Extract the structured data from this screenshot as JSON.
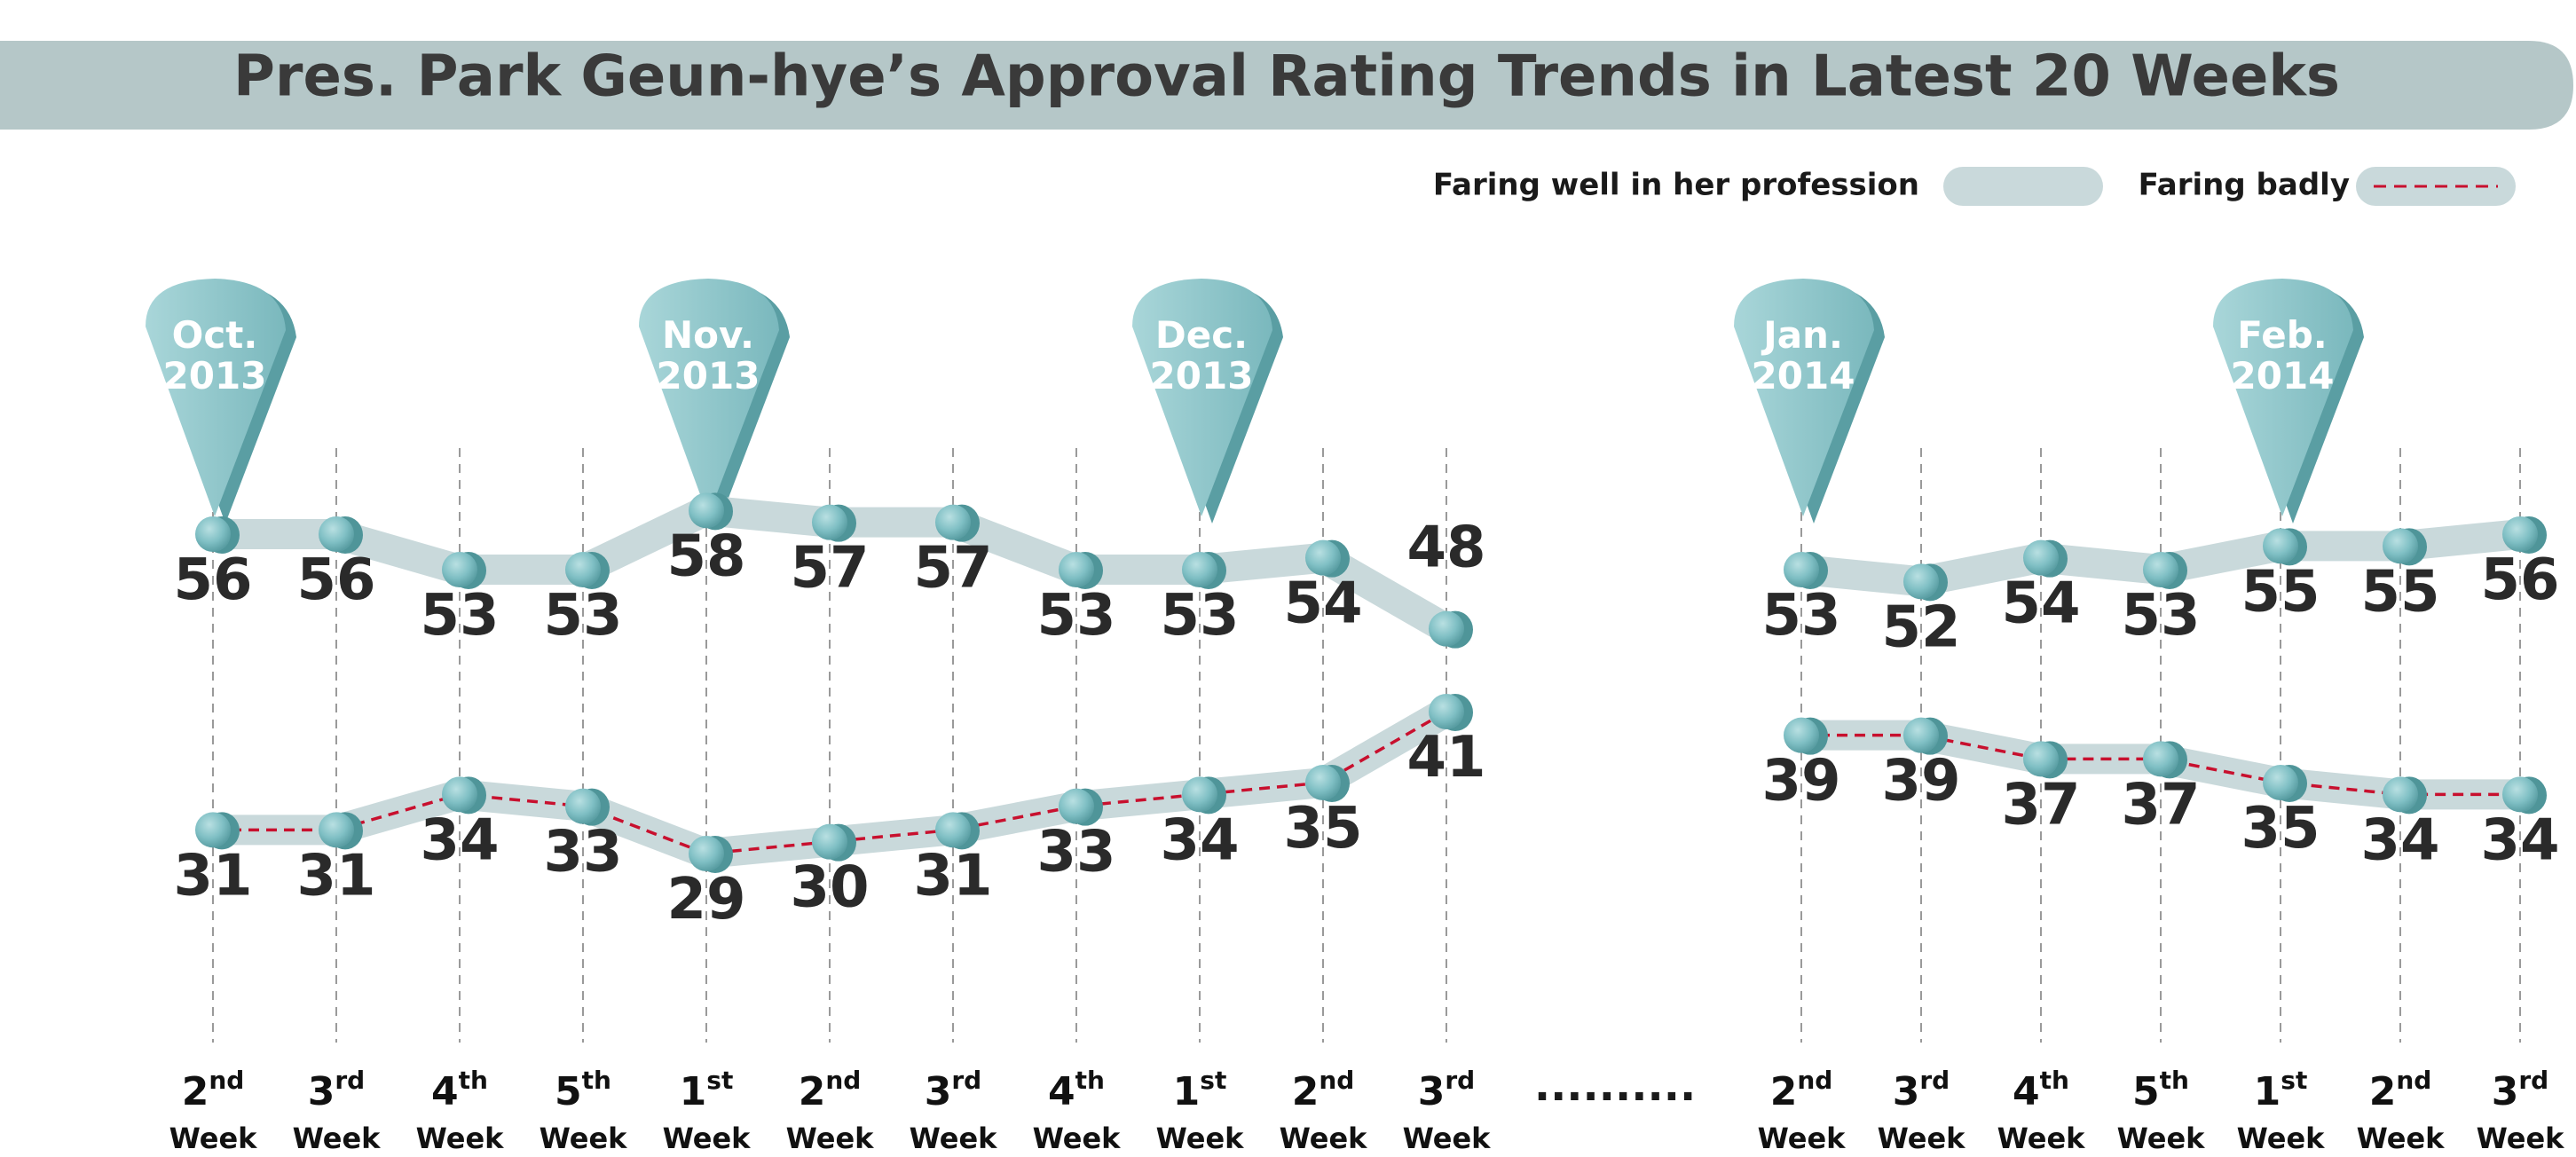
{
  "chart_data": {
    "type": "line",
    "title": "Pres. Park Geun-hye’s Approval Rating Trends in Latest 20 Weeks",
    "legend": {
      "position": "top-right",
      "entries": [
        "Faring well in her profession",
        "Faring badly"
      ]
    },
    "gap_marker": "..........",
    "months": [
      {
        "label_line1": "Oct.",
        "label_line2": "2013",
        "at_index": 0
      },
      {
        "label_line1": "Nov.",
        "label_line2": "2013",
        "at_index": 4
      },
      {
        "label_line1": "Dec.",
        "label_line2": "2013",
        "at_index": 8
      },
      {
        "label_line1": "Jan.",
        "label_line2": "2014",
        "at_index": 11
      },
      {
        "label_line1": "Feb.",
        "label_line2": "2014",
        "at_index": 15
      }
    ],
    "categories": [
      {
        "num": "2",
        "suffix": "nd",
        "unit": "Week"
      },
      {
        "num": "3",
        "suffix": "rd",
        "unit": "Week"
      },
      {
        "num": "4",
        "suffix": "th",
        "unit": "Week"
      },
      {
        "num": "5",
        "suffix": "th",
        "unit": "Week"
      },
      {
        "num": "1",
        "suffix": "st",
        "unit": "Week"
      },
      {
        "num": "2",
        "suffix": "nd",
        "unit": "Week"
      },
      {
        "num": "3",
        "suffix": "rd",
        "unit": "Week"
      },
      {
        "num": "4",
        "suffix": "th",
        "unit": "Week"
      },
      {
        "num": "1",
        "suffix": "st",
        "unit": "Week"
      },
      {
        "num": "2",
        "suffix": "nd",
        "unit": "Week"
      },
      {
        "num": "3",
        "suffix": "rd",
        "unit": "Week"
      },
      {
        "num": "2",
        "suffix": "nd",
        "unit": "Week"
      },
      {
        "num": "3",
        "suffix": "rd",
        "unit": "Week"
      },
      {
        "num": "4",
        "suffix": "th",
        "unit": "Week"
      },
      {
        "num": "5",
        "suffix": "th",
        "unit": "Week"
      },
      {
        "num": "1",
        "suffix": "st",
        "unit": "Week"
      },
      {
        "num": "2",
        "suffix": "nd",
        "unit": "Week"
      },
      {
        "num": "3",
        "suffix": "rd",
        "unit": "Week"
      }
    ],
    "segments": [
      {
        "start": 0,
        "end": 10
      },
      {
        "start": 11,
        "end": 17
      }
    ],
    "series": [
      {
        "name": "Faring well in her profession",
        "style": "thick-band",
        "color": "#c9d9db",
        "values": [
          56,
          56,
          53,
          53,
          58,
          57,
          57,
          53,
          53,
          54,
          48,
          53,
          52,
          54,
          53,
          55,
          55,
          56
        ]
      },
      {
        "name": "Faring badly",
        "style": "dashed-on-band",
        "color": "#c8102e",
        "values": [
          31,
          31,
          34,
          33,
          29,
          30,
          31,
          33,
          34,
          35,
          41,
          39,
          39,
          37,
          37,
          35,
          34,
          34
        ]
      }
    ],
    "colors": {
      "title_band": "#b5c7c8",
      "title_text": "#3a3a3a",
      "band": "#c9d9db",
      "dot": "#7fbfc4",
      "dot_shadow": "#4f9599",
      "pin": "#8fc8cc",
      "pin_shadow": "#5a9ea3",
      "dashed_line": "#c8102e",
      "value_text": "#2a2a2a",
      "grid": "#9a9a9a"
    }
  }
}
